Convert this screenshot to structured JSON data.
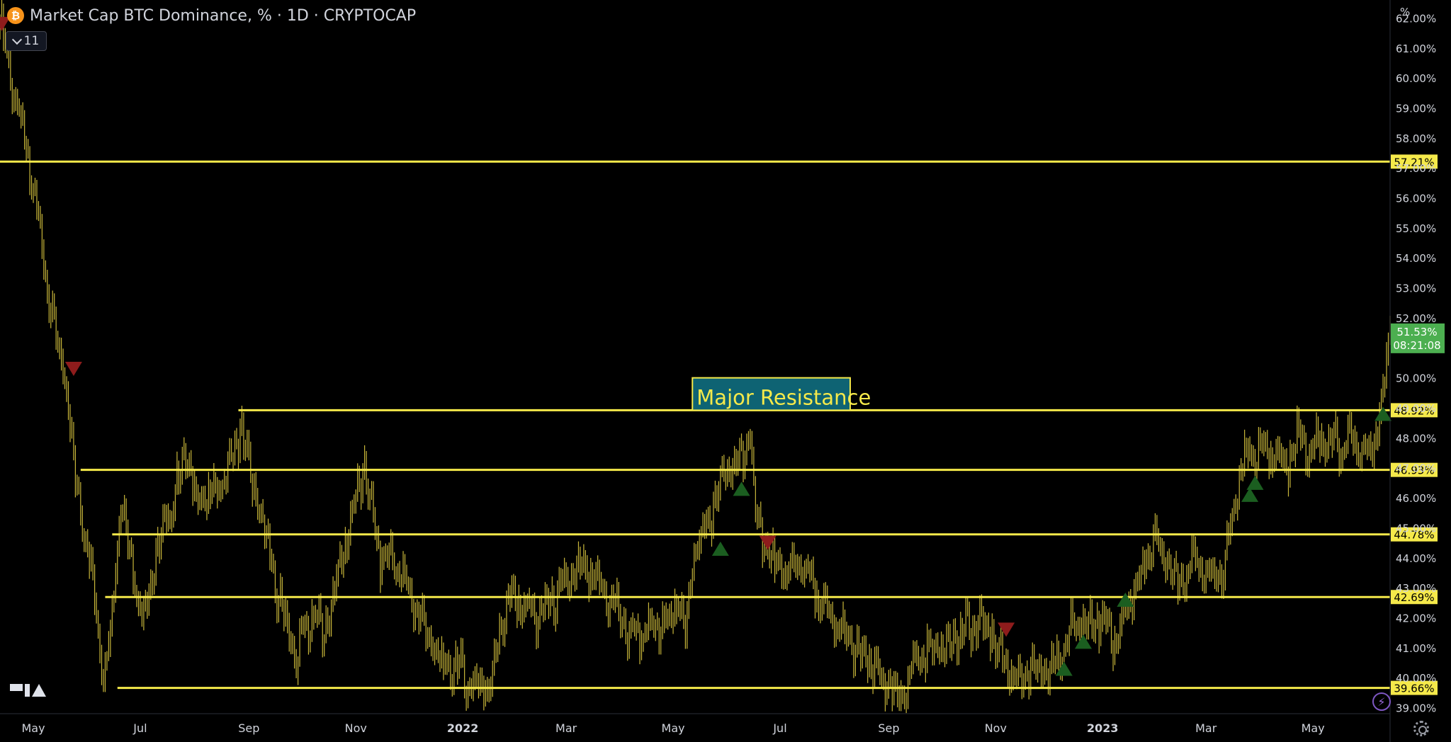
{
  "header": {
    "coin_icon": "bitcoin-icon",
    "coin_glyph": "₿",
    "title": "Market Cap BTC Dominance, % · 1D · CRYPTOCAP",
    "indicator_count": "11"
  },
  "colors": {
    "background": "#000000",
    "bars": "#c9b73a",
    "level_line": "#f5e94a",
    "annotation_fill": "#0e6373",
    "annotation_text": "#f5e94a",
    "sell_marker": "#8e1c1c",
    "buy_marker": "#1b5e20",
    "last_price_badge": "#4caf50",
    "axis_text": "#d1d4dc"
  },
  "chart_data": {
    "type": "ohlc-bar",
    "x_range": [
      "2021-04-12",
      "2023-06-14"
    ],
    "y_range": [
      38.8,
      62.6
    ],
    "y_unit": "%",
    "y_ticks": [
      "39.00%",
      "40.00%",
      "41.00%",
      "42.00%",
      "43.00%",
      "44.00%",
      "45.00%",
      "46.00%",
      "47.00%",
      "48.00%",
      "49.00%",
      "50.00%",
      "51.00%",
      "52.00%",
      "53.00%",
      "54.00%",
      "55.00%",
      "56.00%",
      "57.00%",
      "58.00%",
      "59.00%",
      "60.00%",
      "61.00%",
      "62.00%"
    ],
    "x_ticks": [
      {
        "date": "2021-05-01",
        "label": "May",
        "bold": false
      },
      {
        "date": "2021-07-01",
        "label": "Jul",
        "bold": false
      },
      {
        "date": "2021-09-01",
        "label": "Sep",
        "bold": false
      },
      {
        "date": "2021-11-01",
        "label": "Nov",
        "bold": false
      },
      {
        "date": "2022-01-01",
        "label": "2022",
        "bold": true
      },
      {
        "date": "2022-03-01",
        "label": "Mar",
        "bold": false
      },
      {
        "date": "2022-05-01",
        "label": "May",
        "bold": false
      },
      {
        "date": "2022-07-01",
        "label": "Jul",
        "bold": false
      },
      {
        "date": "2022-09-01",
        "label": "Sep",
        "bold": false
      },
      {
        "date": "2022-11-01",
        "label": "Nov",
        "bold": false
      },
      {
        "date": "2023-01-01",
        "label": "2023",
        "bold": true
      },
      {
        "date": "2023-03-01",
        "label": "Mar",
        "bold": false
      },
      {
        "date": "2023-05-01",
        "label": "May",
        "bold": false
      }
    ],
    "price_path": [
      [
        "2021-04-12",
        62.0
      ],
      [
        "2021-04-20",
        59.5
      ],
      [
        "2021-05-02",
        56.0
      ],
      [
        "2021-05-12",
        52.0
      ],
      [
        "2021-05-20",
        49.5
      ],
      [
        "2021-05-25",
        46.5
      ],
      [
        "2021-06-01",
        44.5
      ],
      [
        "2021-06-06",
        42.0
      ],
      [
        "2021-06-10",
        40.3
      ],
      [
        "2021-06-13",
        41.0
      ],
      [
        "2021-06-20",
        46.0
      ],
      [
        "2021-06-26",
        44.0
      ],
      [
        "2021-07-02",
        42.0
      ],
      [
        "2021-07-10",
        44.0
      ],
      [
        "2021-07-20",
        46.0
      ],
      [
        "2021-07-27",
        47.5
      ],
      [
        "2021-08-02",
        46.0
      ],
      [
        "2021-08-10",
        46.0
      ],
      [
        "2021-08-16",
        46.5
      ],
      [
        "2021-08-24",
        47.5
      ],
      [
        "2021-08-28",
        48.5
      ],
      [
        "2021-09-02",
        46.5
      ],
      [
        "2021-09-10",
        45.0
      ],
      [
        "2021-09-16",
        43.0
      ],
      [
        "2021-09-22",
        42.0
      ],
      [
        "2021-09-28",
        40.5
      ],
      [
        "2021-10-02",
        41.5
      ],
      [
        "2021-10-08",
        42.0
      ],
      [
        "2021-10-14",
        41.5
      ],
      [
        "2021-10-20",
        43.0
      ],
      [
        "2021-10-26",
        44.5
      ],
      [
        "2021-11-01",
        46.0
      ],
      [
        "2021-11-06",
        47.0
      ],
      [
        "2021-11-10",
        45.5
      ],
      [
        "2021-11-15",
        44.0
      ],
      [
        "2021-11-22",
        44.0
      ],
      [
        "2021-11-30",
        43.0
      ],
      [
        "2021-12-08",
        42.0
      ],
      [
        "2021-12-15",
        41.0
      ],
      [
        "2021-12-22",
        40.2
      ],
      [
        "2021-12-28",
        40.5
      ],
      [
        "2022-01-04",
        39.8
      ],
      [
        "2022-01-10",
        39.8
      ],
      [
        "2022-01-16",
        39.7
      ],
      [
        "2022-01-22",
        41.5
      ],
      [
        "2022-01-26",
        42.5
      ],
      [
        "2022-02-04",
        42.5
      ],
      [
        "2022-02-12",
        42.0
      ],
      [
        "2022-02-20",
        42.5
      ],
      [
        "2022-02-28",
        43.0
      ],
      [
        "2022-03-06",
        43.5
      ],
      [
        "2022-03-12",
        43.5
      ],
      [
        "2022-03-20",
        43.0
      ],
      [
        "2022-03-28",
        42.5
      ],
      [
        "2022-04-05",
        41.5
      ],
      [
        "2022-04-12",
        41.5
      ],
      [
        "2022-04-20",
        41.5
      ],
      [
        "2022-04-28",
        42.0
      ],
      [
        "2022-05-04",
        42.5
      ],
      [
        "2022-05-08",
        41.5
      ],
      [
        "2022-05-12",
        44.0
      ],
      [
        "2022-05-20",
        45.0
      ],
      [
        "2022-05-28",
        46.5
      ],
      [
        "2022-06-04",
        47.0
      ],
      [
        "2022-06-10",
        47.5
      ],
      [
        "2022-06-14",
        48.0
      ],
      [
        "2022-06-16",
        46.0
      ],
      [
        "2022-06-20",
        45.0
      ],
      [
        "2022-06-25",
        44.0
      ],
      [
        "2022-07-01",
        43.5
      ],
      [
        "2022-07-08",
        43.5
      ],
      [
        "2022-07-12",
        44.0
      ],
      [
        "2022-07-20",
        43.0
      ],
      [
        "2022-07-28",
        42.0
      ],
      [
        "2022-08-06",
        41.5
      ],
      [
        "2022-08-14",
        40.8
      ],
      [
        "2022-08-20",
        40.5
      ],
      [
        "2022-08-28",
        40.0
      ],
      [
        "2022-09-03",
        39.5
      ],
      [
        "2022-09-07",
        39.0
      ],
      [
        "2022-09-12",
        40.2
      ],
      [
        "2022-09-20",
        40.8
      ],
      [
        "2022-09-28",
        41.0
      ],
      [
        "2022-10-06",
        41.3
      ],
      [
        "2022-10-14",
        41.5
      ],
      [
        "2022-10-22",
        41.8
      ],
      [
        "2022-10-30",
        41.5
      ],
      [
        "2022-11-06",
        40.5
      ],
      [
        "2022-11-12",
        40.0
      ],
      [
        "2022-11-20",
        40.2
      ],
      [
        "2022-11-28",
        40.0
      ],
      [
        "2022-12-06",
        40.5
      ],
      [
        "2022-12-14",
        41.5
      ],
      [
        "2022-12-20",
        42.0
      ],
      [
        "2022-12-28",
        42.0
      ],
      [
        "2023-01-06",
        41.2
      ],
      [
        "2023-01-10",
        41.5
      ],
      [
        "2023-01-16",
        42.5
      ],
      [
        "2023-01-24",
        43.5
      ],
      [
        "2023-01-30",
        44.5
      ],
      [
        "2023-02-06",
        44.0
      ],
      [
        "2023-02-14",
        43.0
      ],
      [
        "2023-02-22",
        44.0
      ],
      [
        "2023-03-02",
        43.5
      ],
      [
        "2023-03-10",
        43.2
      ],
      [
        "2023-03-14",
        44.5
      ],
      [
        "2023-03-18",
        46.0
      ],
      [
        "2023-03-24",
        47.5
      ],
      [
        "2023-04-02",
        47.5
      ],
      [
        "2023-04-10",
        47.5
      ],
      [
        "2023-04-16",
        47.0
      ],
      [
        "2023-04-22",
        48.0
      ],
      [
        "2023-04-28",
        47.5
      ],
      [
        "2023-05-06",
        48.0
      ],
      [
        "2023-05-14",
        47.8
      ],
      [
        "2023-05-22",
        47.8
      ],
      [
        "2023-05-30",
        47.8
      ],
      [
        "2023-06-04",
        47.5
      ],
      [
        "2023-06-08",
        49.2
      ],
      [
        "2023-06-12",
        50.2
      ],
      [
        "2023-06-14",
        51.53
      ]
    ],
    "levels": [
      {
        "value": 57.21,
        "label": "57.21%",
        "from": "2021-04-12"
      },
      {
        "value": 48.92,
        "label": "48.92%",
        "from": "2021-08-26"
      },
      {
        "value": 46.93,
        "label": "46.93%",
        "from": "2021-05-28"
      },
      {
        "value": 44.78,
        "label": "44.78%",
        "from": "2021-06-15"
      },
      {
        "value": 42.69,
        "label": "42.69%",
        "from": "2021-06-11"
      },
      {
        "value": 39.66,
        "label": "39.66%",
        "from": "2021-06-18"
      }
    ],
    "annotation": {
      "text": "Major Resistance",
      "from": "2022-05-12",
      "to": "2022-08-10",
      "top": 50.0,
      "bottom": 48.92
    },
    "signals": [
      {
        "date": "2021-04-13",
        "value": 61.8,
        "type": "sell"
      },
      {
        "date": "2021-05-24",
        "value": 50.3,
        "type": "sell"
      },
      {
        "date": "2022-05-28",
        "value": 44.3,
        "type": "buy"
      },
      {
        "date": "2022-06-09",
        "value": 46.3,
        "type": "buy"
      },
      {
        "date": "2022-06-24",
        "value": 44.5,
        "type": "sell"
      },
      {
        "date": "2022-11-07",
        "value": 41.6,
        "type": "sell"
      },
      {
        "date": "2022-12-10",
        "value": 40.3,
        "type": "buy"
      },
      {
        "date": "2022-12-21",
        "value": 41.2,
        "type": "buy"
      },
      {
        "date": "2023-01-14",
        "value": 42.6,
        "type": "buy"
      },
      {
        "date": "2023-03-26",
        "value": 46.1,
        "type": "buy"
      },
      {
        "date": "2023-03-29",
        "value": 46.5,
        "type": "buy"
      },
      {
        "date": "2023-06-10",
        "value": 48.8,
        "type": "buy"
      }
    ],
    "last_price": {
      "value": 51.53,
      "label": "51.53%",
      "countdown": "08:21:08"
    }
  }
}
